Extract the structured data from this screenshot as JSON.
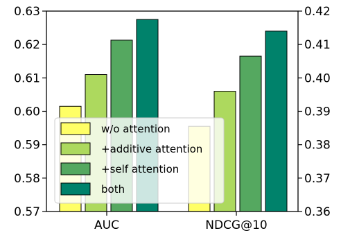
{
  "chart_data": {
    "type": "bar",
    "categories": [
      "AUC",
      "NDCG@10"
    ],
    "series": [
      {
        "name": "w/o attention",
        "color": "#ffff66",
        "values": [
          0.6015,
          0.3855
        ],
        "axis": [
          "left",
          "right"
        ]
      },
      {
        "name": "+additive attention",
        "color": "#add95e",
        "values": [
          0.611,
          0.396
        ],
        "axis": [
          "left",
          "right"
        ]
      },
      {
        "name": "+self attention",
        "color": "#55a860",
        "values": [
          0.6213,
          0.4065
        ],
        "axis": [
          "left",
          "right"
        ]
      },
      {
        "name": "both",
        "color": "#00826b",
        "values": [
          0.6275,
          0.414
        ],
        "axis": [
          "left",
          "right"
        ]
      }
    ],
    "left_axis": {
      "ylim": [
        0.57,
        0.63
      ],
      "ticks": [
        "0.57",
        "0.58",
        "0.59",
        "0.60",
        "0.61",
        "0.62",
        "0.63"
      ]
    },
    "right_axis": {
      "ylim": [
        0.36,
        0.42
      ],
      "ticks": [
        "0.36",
        "0.37",
        "0.38",
        "0.39",
        "0.40",
        "0.41",
        "0.42"
      ]
    },
    "legend": {
      "placement": "lower-left",
      "labels": [
        "w/o attention",
        "+additive attention",
        "+self attention",
        "both"
      ]
    },
    "grid": false
  }
}
